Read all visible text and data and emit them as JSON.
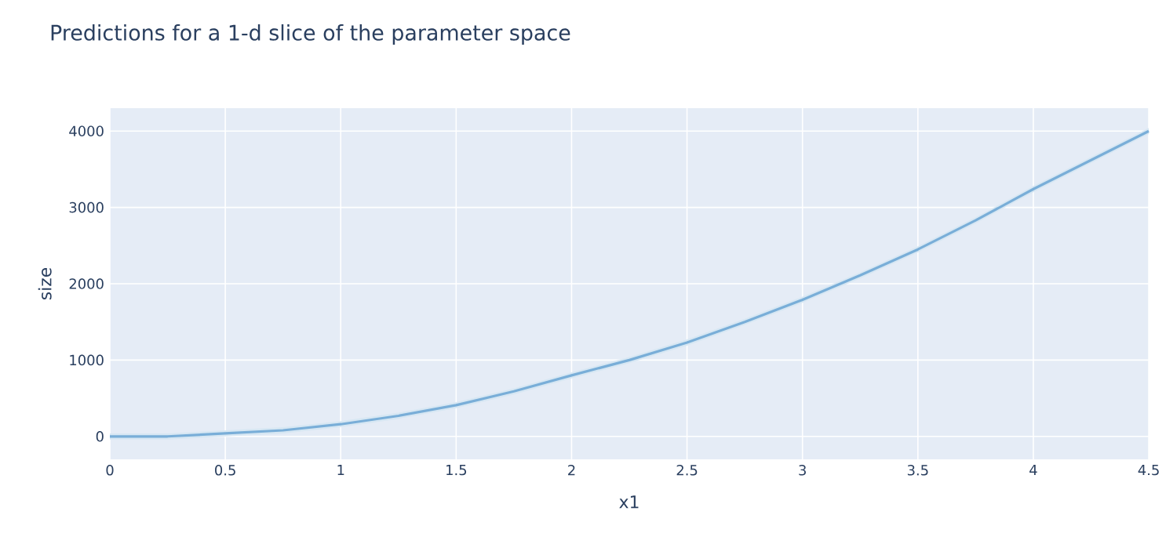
{
  "chart_data": {
    "type": "line",
    "title": "Predictions for a 1-d slice of the parameter space",
    "xlabel": "x1",
    "ylabel": "size",
    "x": [
      0,
      0.25,
      0.5,
      0.75,
      1,
      1.25,
      1.5,
      1.75,
      2,
      2.25,
      2.5,
      2.75,
      3,
      3.25,
      3.5,
      3.75,
      4,
      4.25,
      4.5
    ],
    "series": [
      {
        "color": "#79aed8",
        "values": [
          0,
          0,
          40,
          80,
          160,
          270,
          410,
          590,
          800,
          1000,
          1230,
          1500,
          1790,
          2110,
          2450,
          2830,
          3240,
          3620,
          4000
        ],
        "lower": [
          -40,
          -40,
          0,
          40,
          120,
          230,
          370,
          550,
          760,
          960,
          1190,
          1460,
          1750,
          2070,
          2410,
          2790,
          3200,
          3580,
          3960
        ],
        "upper": [
          40,
          40,
          80,
          120,
          200,
          310,
          450,
          630,
          840,
          1040,
          1270,
          1540,
          1830,
          2150,
          2490,
          2870,
          3280,
          3660,
          4040
        ]
      }
    ],
    "xlim": [
      0,
      4.5
    ],
    "ylim": [
      -300,
      4300
    ],
    "xticks": [
      0,
      0.5,
      1,
      1.5,
      2,
      2.5,
      3,
      3.5,
      4,
      4.5
    ],
    "yticks": [
      0,
      1000,
      2000,
      3000,
      4000
    ],
    "grid": true
  }
}
